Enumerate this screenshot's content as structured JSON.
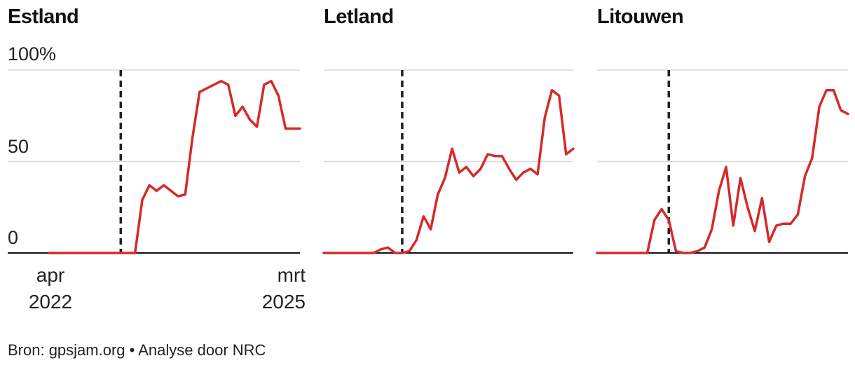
{
  "chart_data": [
    {
      "type": "line",
      "title": "Estland",
      "ylim": [
        0,
        100
      ],
      "yticks": [
        "100%",
        "50",
        "0"
      ],
      "xtick_labels": [
        {
          "month": "apr",
          "year": "2022"
        },
        {
          "month": "mrt",
          "year": "2025"
        }
      ],
      "x": [
        "2022-04",
        "2022-05",
        "2022-06",
        "2022-07",
        "2022-08",
        "2022-09",
        "2022-10",
        "2022-11",
        "2022-12",
        "2023-01",
        "2023-02",
        "2023-03",
        "2023-04",
        "2023-05",
        "2023-06",
        "2023-07",
        "2023-08",
        "2023-09",
        "2023-10",
        "2023-11",
        "2023-12",
        "2024-01",
        "2024-02",
        "2024-03",
        "2024-04",
        "2024-05",
        "2024-06",
        "2024-07",
        "2024-08",
        "2024-09",
        "2024-10",
        "2024-11",
        "2024-12",
        "2025-01",
        "2025-02",
        "2025-03"
      ],
      "series": [
        {
          "values": [
            0,
            0,
            0,
            0,
            0,
            0,
            0,
            0,
            0,
            0,
            0,
            0,
            0,
            29,
            37,
            34,
            37,
            34,
            31,
            32,
            63,
            88,
            90,
            92,
            94,
            92,
            75,
            80,
            73,
            69,
            92,
            94,
            86,
            68,
            68,
            68
          ]
        }
      ],
      "marker_date": "2023-02",
      "color": "#d42a2a"
    },
    {
      "type": "line",
      "title": "Letland",
      "ylim": [
        0,
        100
      ],
      "x": [
        "2022-04",
        "2022-05",
        "2022-06",
        "2022-07",
        "2022-08",
        "2022-09",
        "2022-10",
        "2022-11",
        "2022-12",
        "2023-01",
        "2023-02",
        "2023-03",
        "2023-04",
        "2023-05",
        "2023-06",
        "2023-07",
        "2023-08",
        "2023-09",
        "2023-10",
        "2023-11",
        "2023-12",
        "2024-01",
        "2024-02",
        "2024-03",
        "2024-04",
        "2024-05",
        "2024-06",
        "2024-07",
        "2024-08",
        "2024-09",
        "2024-10",
        "2024-11",
        "2024-12",
        "2025-01",
        "2025-02",
        "2025-03"
      ],
      "series": [
        {
          "values": [
            0,
            0,
            0,
            0,
            0,
            0,
            0,
            0,
            2,
            3,
            0,
            0,
            1,
            7,
            20,
            13,
            32,
            41,
            57,
            44,
            47,
            42,
            46,
            54,
            53,
            53,
            46,
            40,
            44,
            46,
            43,
            74,
            89,
            86,
            54,
            57
          ]
        }
      ],
      "marker_date": "2023-03",
      "color": "#d42a2a"
    },
    {
      "type": "line",
      "title": "Litouwen",
      "ylim": [
        0,
        100
      ],
      "x": [
        "2022-04",
        "2022-05",
        "2022-06",
        "2022-07",
        "2022-08",
        "2022-09",
        "2022-10",
        "2022-11",
        "2022-12",
        "2023-01",
        "2023-02",
        "2023-03",
        "2023-04",
        "2023-05",
        "2023-06",
        "2023-07",
        "2023-08",
        "2023-09",
        "2023-10",
        "2023-11",
        "2023-12",
        "2024-01",
        "2024-02",
        "2024-03",
        "2024-04",
        "2024-05",
        "2024-06",
        "2024-07",
        "2024-08",
        "2024-09",
        "2024-10",
        "2024-11",
        "2024-12",
        "2025-01",
        "2025-02",
        "2025-03"
      ],
      "series": [
        {
          "values": [
            0,
            0,
            0,
            0,
            0,
            0,
            0,
            0,
            18,
            24,
            18,
            1,
            0,
            0,
            1,
            3,
            13,
            34,
            47,
            15,
            41,
            25,
            12,
            30,
            6,
            15,
            16,
            16,
            21,
            42,
            52,
            80,
            89,
            89,
            78,
            76
          ]
        }
      ],
      "marker_date": "2023-02",
      "color": "#d42a2a"
    }
  ],
  "source": "Bron: gpsjam.org  •  Analyse door NRC"
}
